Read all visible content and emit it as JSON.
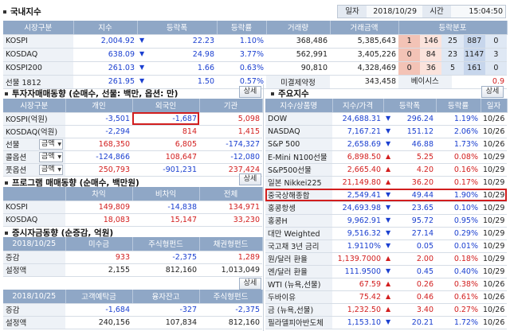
{
  "header": {
    "title": "국내지수",
    "date_label": "일자",
    "date_value": "2018/10/29",
    "time_label": "시간",
    "time_value": "15:04:50"
  },
  "domestic": {
    "columns": [
      "시장구분",
      "지수",
      "등락폭",
      "등락률",
      "거래량",
      "거래금액",
      "등락분포"
    ],
    "rows": [
      {
        "name": "KOSPI",
        "index": "2,004.92",
        "dir": "down",
        "change": "22.23",
        "rate": "1.10%",
        "volume": "368,486",
        "amount": "5,385,643",
        "dist": [
          "1",
          "146",
          "25",
          "887",
          "0"
        ]
      },
      {
        "name": "KOSDAQ",
        "index": "638.09",
        "dir": "down",
        "change": "24.98",
        "rate": "3.77%",
        "volume": "562,991",
        "amount": "3,405,226",
        "dist": [
          "0",
          "84",
          "23",
          "1147",
          "3"
        ]
      },
      {
        "name": "KOSPI200",
        "index": "261.03",
        "dir": "down",
        "change": "1.66",
        "rate": "0.63%",
        "volume": "90,810",
        "amount": "4,328,469",
        "dist": [
          "0",
          "36",
          "5",
          "161",
          "0"
        ]
      }
    ],
    "futures": {
      "name": "선물 1812",
      "index": "261.95",
      "dir": "down",
      "change": "1.50",
      "rate": "0.57%",
      "oi_label": "미결제약정",
      "oi_value": "343,458",
      "basis_label": "베이시스",
      "basis_value": "0.9"
    }
  },
  "investor": {
    "title": "투자자매매동향 (순매수, 선물: 백만, 옵션: 만)",
    "detail": "상세",
    "columns": [
      "시장구분",
      "개인",
      "외국인",
      "기관"
    ],
    "rows": [
      {
        "name": "KOSPI(억원)",
        "sel": "",
        "v1": "-3,501",
        "v2": "-1,687",
        "v3": "5,098",
        "c1": "blue",
        "c2": "blue",
        "c3": "red"
      },
      {
        "name": "KOSDAQ(억원)",
        "sel": "",
        "v1": "-2,294",
        "v2": "814",
        "v3": "1,415",
        "c1": "blue",
        "c2": "red",
        "c3": "red"
      },
      {
        "name": "선물",
        "sel": "금액",
        "v1": "168,350",
        "v2": "6,805",
        "v3": "-174,327",
        "c1": "red",
        "c2": "red",
        "c3": "blue"
      },
      {
        "name": "콜옵션",
        "sel": "금액",
        "v1": "-124,866",
        "v2": "108,647",
        "v3": "-12,080",
        "c1": "blue",
        "c2": "red",
        "c3": "blue"
      },
      {
        "name": "풋옵션",
        "sel": "금액",
        "v1": "250,793",
        "v2": "-901,231",
        "v3": "237,424",
        "c1": "red",
        "c2": "blue",
        "c3": "red"
      }
    ]
  },
  "program": {
    "title": "프로그램 매매동향 (순매수, 백만원)",
    "detail": "상세",
    "columns": [
      "",
      "차익",
      "비차익",
      "전체"
    ],
    "rows": [
      {
        "name": "KOSPI",
        "v1": "149,809",
        "v2": "-14,838",
        "v3": "134,971",
        "c1": "red",
        "c2": "blue",
        "c3": "red"
      },
      {
        "name": "KOSDAQ",
        "v1": "18,083",
        "v2": "15,147",
        "v3": "33,230",
        "c1": "red",
        "c2": "red",
        "c3": "red"
      }
    ]
  },
  "deposit": {
    "title": "증시자금동향 (순증감, 억원)",
    "detail": "상세",
    "columns": [
      "2018/10/25",
      "미수금",
      "주식형펀드",
      "채권형펀드"
    ],
    "rows": [
      {
        "name": "증감",
        "v1": "933",
        "v2": "-2,375",
        "v3": "1,289",
        "c1": "red",
        "c2": "blue",
        "c3": "red"
      },
      {
        "name": "설정액",
        "v1": "2,155",
        "v2": "812,160",
        "v3": "1,013,049",
        "c1": "dark",
        "c2": "dark",
        "c3": "dark"
      }
    ]
  },
  "deposit2": {
    "detail": "상세",
    "columns": [
      "2018/10/25",
      "고객예탁금",
      "융자잔고",
      "주식형펀드"
    ],
    "rows": [
      {
        "name": "증감",
        "v1": "-1,684",
        "v2": "-327",
        "v3": "-2,375",
        "c1": "blue",
        "c2": "blue",
        "c3": "blue"
      },
      {
        "name": "설정액",
        "v1": "240,156",
        "v2": "107,834",
        "v3": "812,160",
        "c1": "dark",
        "c2": "dark",
        "c3": "dark"
      }
    ]
  },
  "major": {
    "title": "주요지수",
    "detail": "상세",
    "columns": [
      "지수/상품명",
      "지수/가격",
      "등락폭",
      "등락률",
      "일자"
    ],
    "rows": [
      {
        "name": "DOW",
        "price": "24,688.31",
        "dir": "down",
        "change": "296.24",
        "rate": "1.19%",
        "date": "10/26",
        "color": "blue"
      },
      {
        "name": "NASDAQ",
        "price": "7,167.21",
        "dir": "down",
        "change": "151.12",
        "rate": "2.06%",
        "date": "10/26",
        "color": "blue"
      },
      {
        "name": "S&P 500",
        "price": "2,658.69",
        "dir": "down",
        "change": "46.88",
        "rate": "1.73%",
        "date": "10/26",
        "color": "blue"
      },
      {
        "name": "E-Mini N100선물",
        "price": "6,898.50",
        "dir": "up",
        "change": "5.25",
        "rate": "0.08%",
        "date": "10/29",
        "color": "red"
      },
      {
        "name": "S&P500선물",
        "price": "2,665.40",
        "dir": "up",
        "change": "4.20",
        "rate": "0.16%",
        "date": "10/29",
        "color": "red"
      },
      {
        "name": "일본 Nikkei225",
        "price": "21,149.80",
        "dir": "up",
        "change": "36.20",
        "rate": "0.17%",
        "date": "10/29",
        "color": "red"
      },
      {
        "name": "중국상해종합",
        "price": "2,549.41",
        "dir": "down",
        "change": "49.44",
        "rate": "1.90%",
        "date": "10/29",
        "color": "blue"
      },
      {
        "name": "홍콩항셍",
        "price": "24,693.98",
        "dir": "down",
        "change": "23.65",
        "rate": "0.10%",
        "date": "10/29",
        "color": "blue"
      },
      {
        "name": "홍콩H",
        "price": "9,962.91",
        "dir": "down",
        "change": "95.72",
        "rate": "0.95%",
        "date": "10/29",
        "color": "blue"
      },
      {
        "name": "대만 Weighted",
        "price": "9,516.32",
        "dir": "down",
        "change": "27.14",
        "rate": "0.29%",
        "date": "10/29",
        "color": "blue"
      },
      {
        "name": "국고채 3년 금리",
        "price": "1.9110%",
        "dir": "down",
        "change": "0.05",
        "rate": "0.01%",
        "date": "10/29",
        "color": "blue"
      },
      {
        "name": "원/달러 환율",
        "price": "1,139.7000",
        "dir": "up",
        "change": "2.00",
        "rate": "0.18%",
        "date": "10/29",
        "color": "red"
      },
      {
        "name": "엔/달러 환율",
        "price": "111.9500",
        "dir": "down",
        "change": "0.45",
        "rate": "0.40%",
        "date": "10/29",
        "color": "blue"
      },
      {
        "name": "WTI (뉴욕,선물)",
        "price": "67.59",
        "dir": "up",
        "change": "0.26",
        "rate": "0.38%",
        "date": "10/26",
        "color": "red"
      },
      {
        "name": "두바이유",
        "price": "75.42",
        "dir": "up",
        "change": "0.46",
        "rate": "0.61%",
        "date": "10/26",
        "color": "red"
      },
      {
        "name": "금 (뉴욕,선물)",
        "price": "1,232.50",
        "dir": "up",
        "change": "3.40",
        "rate": "0.27%",
        "date": "10/26",
        "color": "red"
      },
      {
        "name": "필라델피아반도체",
        "price": "1,153.10",
        "dir": "down",
        "change": "20.21",
        "rate": "1.72%",
        "date": "10/26",
        "color": "blue"
      }
    ]
  },
  "colors": {
    "header_bg": "#8fa7c6",
    "up": "#d21e1e",
    "down": "#1a3fd0",
    "highlight": "#d21e1e"
  }
}
